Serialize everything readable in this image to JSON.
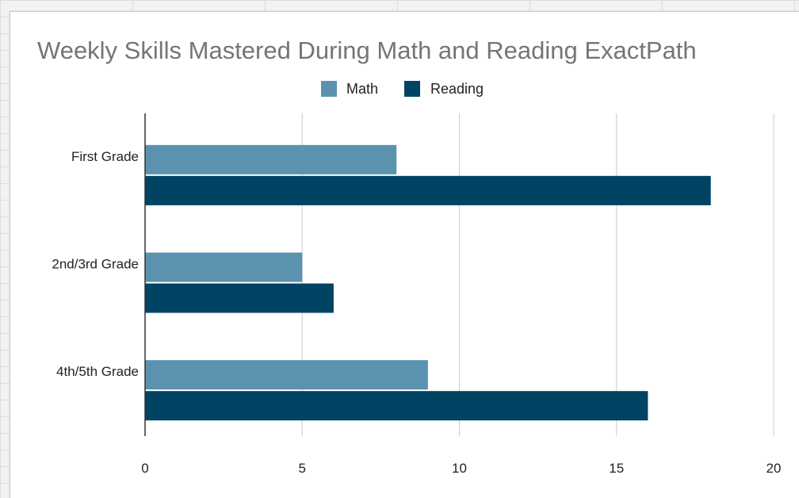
{
  "chart_data": {
    "type": "bar",
    "orientation": "horizontal",
    "title": "Weekly Skills Mastered During Math and Reading ExactPath",
    "categories": [
      "First Grade",
      "2nd/3rd Grade",
      "4th/5th Grade"
    ],
    "series": [
      {
        "name": "Math",
        "color": "#5b92b0",
        "values": [
          8,
          5,
          9
        ]
      },
      {
        "name": "Reading",
        "color": "#014363",
        "values": [
          18,
          6,
          16
        ]
      }
    ],
    "xlim": [
      0,
      20
    ],
    "xticks": [
      0,
      5,
      10,
      15,
      20
    ],
    "grid": true,
    "legend": "top-center"
  }
}
